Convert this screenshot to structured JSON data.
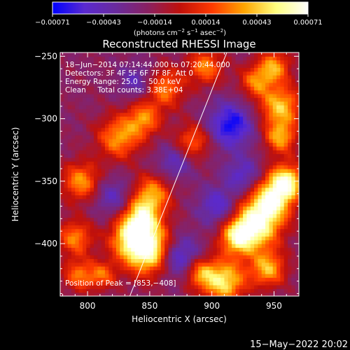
{
  "chart_data": {
    "type": "heatmap",
    "title": "Reconstructed RHESSI Image",
    "xlabel": "Heliocentric X (arcsec)",
    "ylabel": "Heliocentric Y (arcsec)",
    "xlim": [
      778,
      970
    ],
    "ylim": [
      -442,
      -247
    ],
    "x_ticks": [
      800,
      850,
      900,
      950
    ],
    "y_ticks": [
      -250,
      -300,
      -350,
      -400
    ],
    "x_tick_labels": [
      "800",
      "850",
      "900",
      "950"
    ],
    "y_tick_labels": [
      "−250",
      "−300",
      "−350",
      "−400"
    ],
    "info_lines": [
      "18−Jun−2014 07:14:44.000 to 07:20:44.000",
      "Detectors: 3F 4F 5F 6F 7F 8F, Att 0",
      "Energy Range: 25.0 − 50.0 keV",
      "Clean     Total counts: 3.38E+04"
    ],
    "peak_label": "Position of Peak = [853,−408]",
    "peak": [
      853,
      -408
    ],
    "limb_line": {
      "from": [
        834,
        -442
      ],
      "to": [
        912,
        -247
      ]
    },
    "colorbar": {
      "range": [
        -0.00071,
        0.00071
      ],
      "tick_labels": [
        "−0.00071",
        "−0.00043",
        "−0.00014",
        "0.00014",
        "0.00043",
        "0.00071"
      ],
      "unit_line": "(photons cm",
      "unit_sup1": "−2",
      "unit_mid": " s",
      "unit_sup2": "−1",
      "unit_mid2": " asec",
      "unit_sup3": "−2",
      "unit_end": ")",
      "colors": [
        "#0000ff",
        "#5a2ad0",
        "#6a2b9c",
        "#8a2060",
        "#c0100a",
        "#ff3a00",
        "#ffa500",
        "#ffff80",
        "#ffffff"
      ]
    },
    "hot_regions": [
      {
        "x": 851,
        "y": -405,
        "r": 14,
        "v": 1.0
      },
      {
        "x": 835,
        "y": -395,
        "r": 12,
        "v": 0.7
      },
      {
        "x": 843,
        "y": -378,
        "r": 10,
        "v": 0.65
      },
      {
        "x": 852,
        "y": -360,
        "r": 11,
        "v": 0.6
      },
      {
        "x": 935,
        "y": -385,
        "r": 14,
        "v": 0.9
      },
      {
        "x": 948,
        "y": -365,
        "r": 12,
        "v": 0.75
      },
      {
        "x": 920,
        "y": -395,
        "r": 10,
        "v": 0.65
      },
      {
        "x": 960,
        "y": -350,
        "r": 10,
        "v": 0.85
      },
      {
        "x": 910,
        "y": -430,
        "r": 12,
        "v": 0.8
      },
      {
        "x": 890,
        "y": -423,
        "r": 9,
        "v": 0.55
      },
      {
        "x": 945,
        "y": -420,
        "r": 10,
        "v": 0.65
      },
      {
        "x": 795,
        "y": -350,
        "r": 11,
        "v": 0.6
      },
      {
        "x": 790,
        "y": -395,
        "r": 10,
        "v": 0.55
      },
      {
        "x": 793,
        "y": -425,
        "r": 9,
        "v": 0.5
      },
      {
        "x": 825,
        "y": -315,
        "r": 12,
        "v": 0.6
      },
      {
        "x": 845,
        "y": -300,
        "r": 10,
        "v": 0.55
      },
      {
        "x": 862,
        "y": -275,
        "r": 11,
        "v": 0.55
      },
      {
        "x": 895,
        "y": -258,
        "r": 10,
        "v": 0.55
      },
      {
        "x": 950,
        "y": -258,
        "r": 9,
        "v": 0.6
      },
      {
        "x": 955,
        "y": -290,
        "r": 12,
        "v": 0.7
      },
      {
        "x": 955,
        "y": -315,
        "r": 9,
        "v": 0.6
      },
      {
        "x": 935,
        "y": -270,
        "r": 9,
        "v": 0.5
      },
      {
        "x": 885,
        "y": -318,
        "r": 10,
        "v": 0.5
      },
      {
        "x": 812,
        "y": -425,
        "r": 8,
        "v": 0.45
      }
    ],
    "cold_regions": [
      {
        "x": 915,
        "y": -305,
        "r": 13,
        "v": -0.6
      },
      {
        "x": 872,
        "y": -410,
        "r": 12,
        "v": -0.65
      },
      {
        "x": 905,
        "y": -370,
        "r": 11,
        "v": -0.45
      },
      {
        "x": 820,
        "y": -362,
        "r": 11,
        "v": -0.35
      },
      {
        "x": 870,
        "y": -335,
        "r": 10,
        "v": -0.35
      },
      {
        "x": 840,
        "y": -270,
        "r": 10,
        "v": -0.35
      },
      {
        "x": 925,
        "y": -345,
        "r": 10,
        "v": -0.4
      }
    ]
  },
  "timestamp": "15−May−2022 20:02"
}
